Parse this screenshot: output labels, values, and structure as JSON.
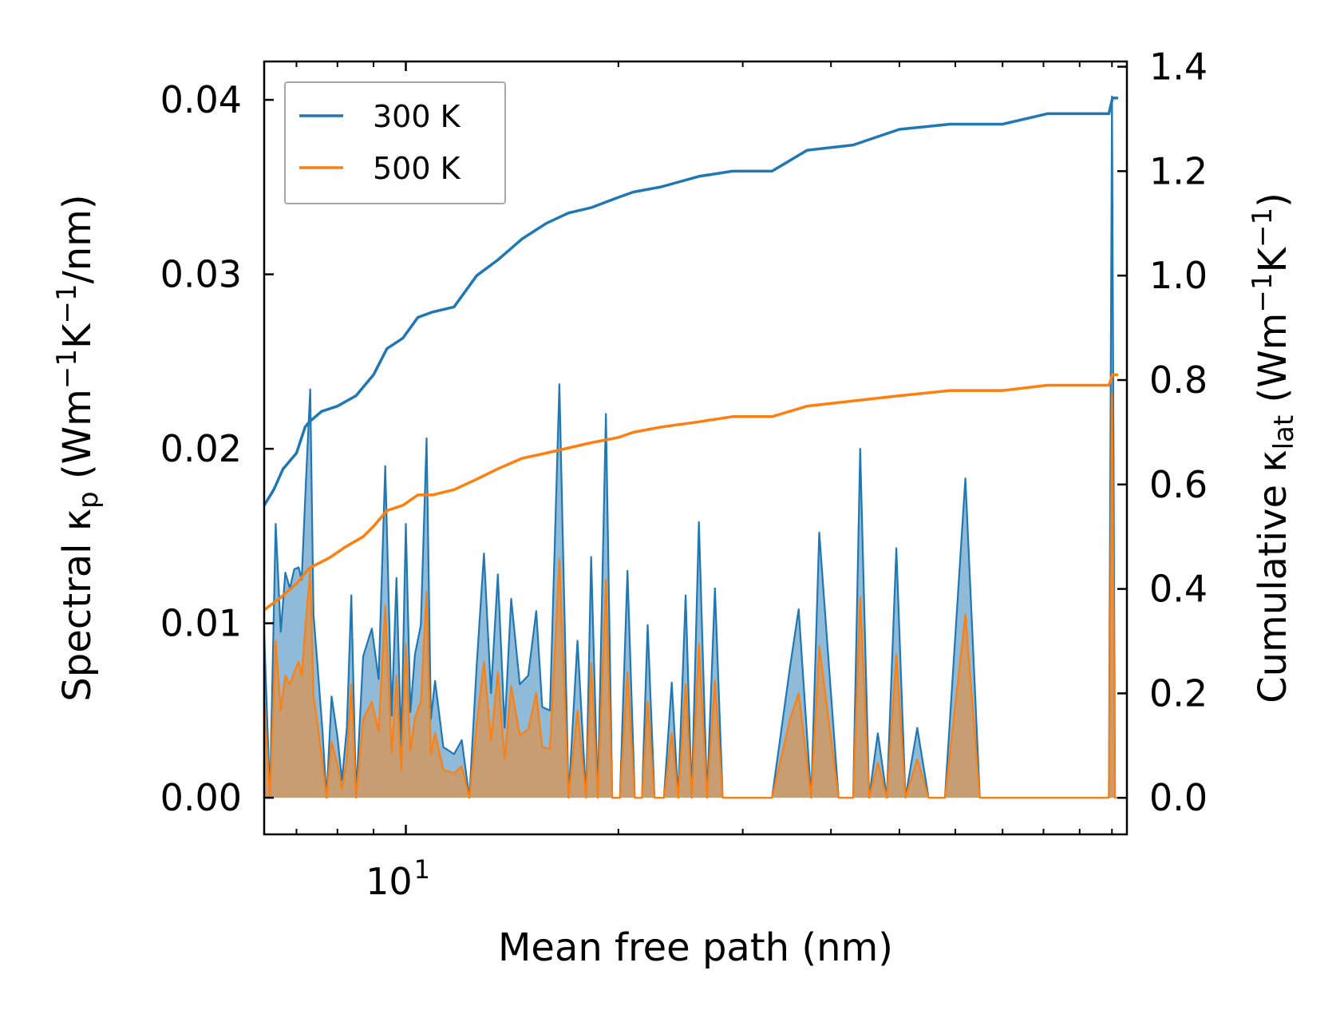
{
  "chart_data": {
    "type": "line",
    "xscale": "log",
    "xlabel": "Mean free path (nm)",
    "xlim": [
      6.3,
      105
    ],
    "xticks_major": [
      {
        "value": 10,
        "base": "10",
        "exp": "1"
      }
    ],
    "xticks_minor": [
      7,
      8,
      9,
      20,
      30,
      40,
      50,
      60,
      70,
      80,
      90,
      100
    ],
    "ylabel_left": {
      "pre": "Spectral κ",
      "sub": "p",
      "mid": " (Wm",
      "sup1": "−1",
      "k": "K",
      "sup2": "−1",
      "post": "/nm)"
    },
    "ylabel_right": {
      "pre": "Cumulative κ",
      "sub": "lat",
      "mid": " (Wm",
      "sup1": "−1",
      "k": "K",
      "sup2": "−1",
      "post": ")"
    },
    "ylim_left": [
      -0.0021,
      0.0422
    ],
    "ylim_right": [
      -0.07,
      1.41
    ],
    "yticks_left": [
      "0.00",
      "0.01",
      "0.02",
      "0.03",
      "0.04"
    ],
    "yticks_right": [
      "0.0",
      "0.2",
      "0.4",
      "0.6",
      "0.8",
      "1.0",
      "1.2",
      "1.4"
    ],
    "legend": {
      "placement": "upper-left",
      "entries": [
        {
          "label": "300 K",
          "color": "#1f77b4"
        },
        {
          "label": "500 K",
          "color": "#ff7f0e"
        }
      ]
    },
    "series": [
      {
        "name": "Cumulative κlat 300 K",
        "axis": "right",
        "kind": "line",
        "color": "#1f77b4",
        "x": [
          6.3,
          6.5,
          6.7,
          7.0,
          7.2,
          7.3,
          7.6,
          8.0,
          8.5,
          9.0,
          9.4,
          9.9,
          10.4,
          10.9,
          11.7,
          12.6,
          13.5,
          14.6,
          15.8,
          17.0,
          18.3,
          20.0,
          21.0,
          23.0,
          26.0,
          29.0,
          33.0,
          37.0,
          43.0,
          50.0,
          59.0,
          70.0,
          81.0,
          99.0,
          100.2,
          102.0
        ],
        "y": [
          0.56,
          0.59,
          0.63,
          0.66,
          0.71,
          0.72,
          0.74,
          0.75,
          0.77,
          0.81,
          0.86,
          0.88,
          0.92,
          0.93,
          0.94,
          1.0,
          1.03,
          1.07,
          1.1,
          1.12,
          1.13,
          1.15,
          1.16,
          1.17,
          1.19,
          1.2,
          1.2,
          1.24,
          1.25,
          1.28,
          1.29,
          1.29,
          1.31,
          1.31,
          1.34,
          1.34
        ]
      },
      {
        "name": "Cumulative κlat 500 K",
        "axis": "right",
        "kind": "line",
        "color": "#ff7f0e",
        "x": [
          6.3,
          6.6,
          7.0,
          7.3,
          7.8,
          8.2,
          8.7,
          9.0,
          9.4,
          9.9,
          10.4,
          10.9,
          11.7,
          12.6,
          13.5,
          14.6,
          15.8,
          17.0,
          18.3,
          20.0,
          21.0,
          23.0,
          26.0,
          29.0,
          33.0,
          37.0,
          43.0,
          50.0,
          59.0,
          70.0,
          81.0,
          99.0,
          100.2,
          102.0
        ],
        "y": [
          0.36,
          0.38,
          0.41,
          0.44,
          0.46,
          0.48,
          0.5,
          0.52,
          0.55,
          0.56,
          0.58,
          0.58,
          0.59,
          0.61,
          0.63,
          0.65,
          0.66,
          0.67,
          0.68,
          0.69,
          0.7,
          0.71,
          0.72,
          0.73,
          0.73,
          0.75,
          0.76,
          0.77,
          0.78,
          0.78,
          0.79,
          0.79,
          0.81,
          0.81
        ]
      },
      {
        "name": "Spectral κp 300 K",
        "axis": "left",
        "kind": "area",
        "color": "#1f77b4",
        "x": [
          6.3,
          6.42,
          6.54,
          6.65,
          6.75,
          6.85,
          6.95,
          7.05,
          7.12,
          7.22,
          7.32,
          7.4,
          7.5,
          7.62,
          7.72,
          7.85,
          8.0,
          8.12,
          8.25,
          8.37,
          8.5,
          8.7,
          8.95,
          9.15,
          9.35,
          9.55,
          9.7,
          9.85,
          10.0,
          10.15,
          10.3,
          10.5,
          10.7,
          10.85,
          11.0,
          11.3,
          11.7,
          12.0,
          12.3,
          12.6,
          12.9,
          13.2,
          13.5,
          13.8,
          14.1,
          14.5,
          14.9,
          15.3,
          15.6,
          16.0,
          16.5,
          17.0,
          17.5,
          18.0,
          18.3,
          18.7,
          19.2,
          19.6,
          20.1,
          20.6,
          21.1,
          21.6,
          22.0,
          22.5,
          23.2,
          23.8,
          24.3,
          24.9,
          25.4,
          26.0,
          26.7,
          27.4,
          28.1,
          28.9,
          31.0,
          33.0,
          35.0,
          36.0,
          37.5,
          38.5,
          41.0,
          43.0,
          44.0,
          45.3,
          46.6,
          48.0,
          49.5,
          51.0,
          53.0,
          55.0,
          56.5,
          58.0,
          62.0,
          65.0,
          67.0,
          69.0,
          73.0,
          77.0,
          80.0,
          82.0,
          84.0,
          86.0,
          90.0,
          95.0,
          98.0,
          99.0,
          100.0,
          101.0,
          102.0
        ],
        "y": [
          0.0095,
          0.0,
          0.0157,
          0.0095,
          0.0129,
          0.012,
          0.0131,
          0.0132,
          0.0125,
          0.0182,
          0.0234,
          0.0105,
          0.0075,
          0.0038,
          0.0,
          0.0058,
          0.0035,
          0.001,
          0.004,
          0.0116,
          0.0001,
          0.0081,
          0.0097,
          0.0068,
          0.019,
          0.0047,
          0.0126,
          0.0029,
          0.0157,
          0.0049,
          0.0082,
          0.0099,
          0.0206,
          0.0045,
          0.0067,
          0.0029,
          0.0025,
          0.0033,
          0.0,
          0.0076,
          0.014,
          0.006,
          0.0128,
          0.004,
          0.0114,
          0.0065,
          0.007,
          0.0107,
          0.0052,
          0.005,
          0.0237,
          0.0,
          0.009,
          0.0,
          0.0138,
          0.0,
          0.022,
          0.0,
          0.0,
          0.013,
          0.0,
          0.0,
          0.0099,
          0.0,
          0.0,
          0.0066,
          0.0,
          0.0116,
          0.0,
          0.0158,
          0.0,
          0.012,
          0.0,
          0.0,
          0.0,
          0.0,
          0.0075,
          0.0108,
          0.0,
          0.0152,
          0.0,
          0.0,
          0.02,
          0.0,
          0.0037,
          0.0,
          0.0143,
          0.0,
          0.004,
          0.0,
          0.0,
          0.0,
          0.0183,
          0.0,
          0.0,
          0.0,
          0.0,
          0.0,
          0.0,
          0.0,
          0.0,
          0.0,
          0.0,
          0.0,
          0.0,
          0.0,
          0.0402,
          0.0,
          0.0
        ]
      },
      {
        "name": "Spectral κp 500 K",
        "axis": "left",
        "kind": "area",
        "color": "#ff7f0e",
        "x": [
          6.3,
          6.42,
          6.54,
          6.65,
          6.75,
          6.85,
          6.95,
          7.05,
          7.12,
          7.22,
          7.32,
          7.4,
          7.5,
          7.62,
          7.72,
          7.85,
          8.0,
          8.12,
          8.25,
          8.37,
          8.5,
          8.7,
          8.95,
          9.15,
          9.35,
          9.55,
          9.7,
          9.85,
          10.0,
          10.15,
          10.3,
          10.5,
          10.7,
          10.85,
          11.0,
          11.3,
          11.7,
          12.0,
          12.3,
          12.6,
          12.9,
          13.2,
          13.5,
          13.8,
          14.1,
          14.5,
          14.9,
          15.3,
          15.6,
          16.0,
          16.5,
          17.0,
          17.5,
          18.0,
          18.3,
          18.7,
          19.2,
          19.6,
          20.1,
          20.6,
          21.1,
          21.6,
          22.0,
          22.5,
          23.2,
          23.8,
          24.3,
          24.9,
          25.4,
          26.0,
          26.7,
          27.4,
          28.1,
          28.9,
          31.0,
          33.0,
          35.0,
          36.0,
          37.5,
          38.5,
          41.0,
          43.0,
          44.0,
          45.3,
          46.6,
          48.0,
          49.5,
          51.0,
          53.0,
          55.0,
          56.5,
          58.0,
          62.0,
          65.0,
          67.0,
          69.0,
          73.0,
          77.0,
          80.0,
          82.0,
          84.0,
          86.0,
          90.0,
          95.0,
          98.0,
          99.0,
          100.0,
          101.0,
          102.0
        ],
        "y": [
          0.0055,
          0.0,
          0.009,
          0.005,
          0.007,
          0.0065,
          0.0072,
          0.0078,
          0.007,
          0.0102,
          0.013,
          0.0058,
          0.0042,
          0.002,
          0.0,
          0.0032,
          0.0019,
          0.0005,
          0.0022,
          0.0065,
          0.0,
          0.0045,
          0.0055,
          0.0038,
          0.011,
          0.0026,
          0.007,
          0.0016,
          0.0088,
          0.0027,
          0.0046,
          0.0055,
          0.0118,
          0.0025,
          0.0037,
          0.0016,
          0.0014,
          0.0018,
          0.0,
          0.0042,
          0.0078,
          0.0033,
          0.0072,
          0.0022,
          0.0064,
          0.0036,
          0.0039,
          0.006,
          0.0029,
          0.0028,
          0.0137,
          0.0,
          0.005,
          0.0,
          0.0077,
          0.0,
          0.0125,
          0.0,
          0.0,
          0.0072,
          0.0,
          0.0,
          0.0055,
          0.0,
          0.0,
          0.0037,
          0.0,
          0.0065,
          0.0,
          0.0088,
          0.0,
          0.0067,
          0.0,
          0.0,
          0.0,
          0.0,
          0.0045,
          0.006,
          0.0,
          0.0087,
          0.0,
          0.0,
          0.0115,
          0.0,
          0.002,
          0.0,
          0.0082,
          0.0,
          0.0022,
          0.0,
          0.0,
          0.0,
          0.0105,
          0.0,
          0.0,
          0.0,
          0.0,
          0.0,
          0.0,
          0.0,
          0.0,
          0.0,
          0.0,
          0.0,
          0.0,
          0.0,
          0.0232,
          0.0,
          0.0
        ]
      }
    ]
  }
}
